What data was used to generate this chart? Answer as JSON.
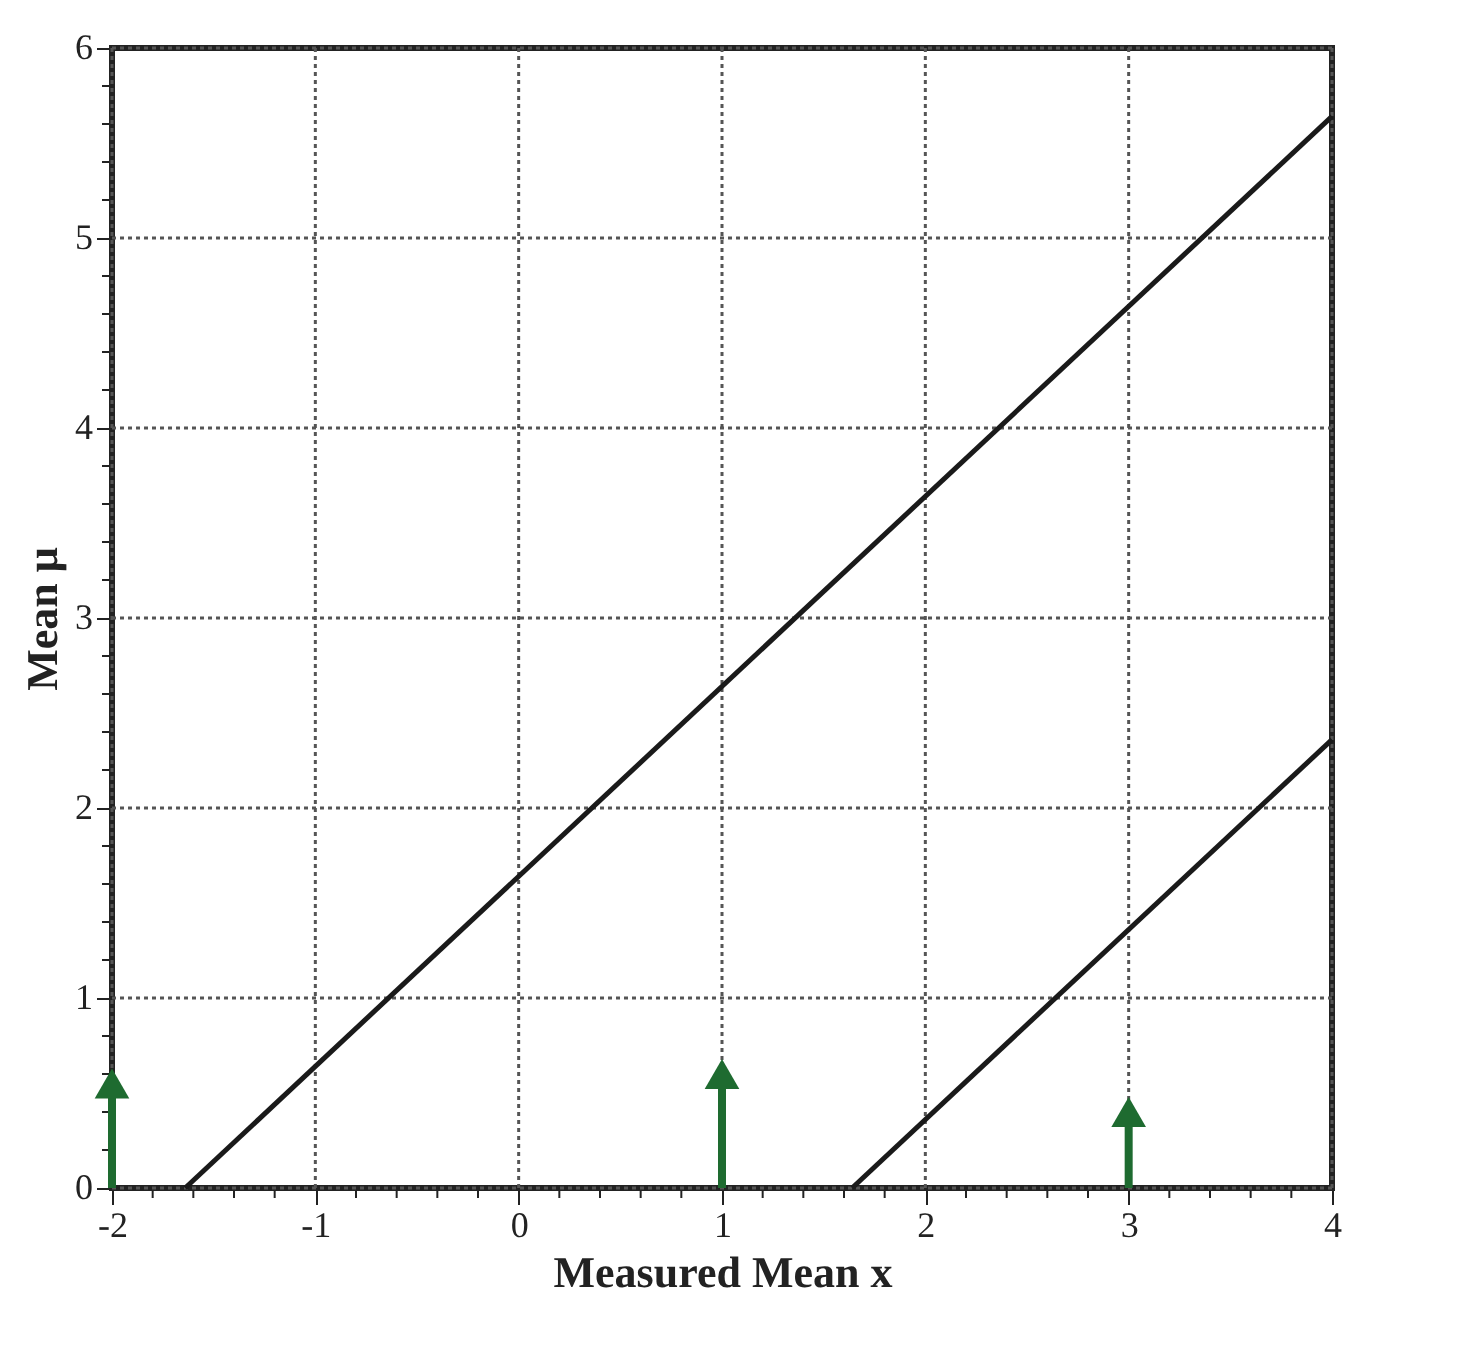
{
  "chart_data": {
    "type": "line",
    "xlabel": "Measured Mean x",
    "ylabel": "Mean μ",
    "xlim": [
      -2,
      4
    ],
    "ylim": [
      0,
      6
    ],
    "xticks": [
      -2,
      {
        "value": -1.8,
        "label": null
      },
      {
        "value": -1.6,
        "label": null
      },
      {
        "value": -1.4,
        "label": null
      },
      {
        "value": -1.2,
        "label": null
      },
      -1,
      {
        "value": -0.8,
        "label": null
      },
      {
        "value": -0.6,
        "label": null
      },
      {
        "value": -0.4,
        "label": null
      },
      {
        "value": -0.2,
        "label": null
      },
      0,
      {
        "value": 0.2,
        "label": null
      },
      {
        "value": 0.4,
        "label": null
      },
      {
        "value": 0.6,
        "label": null
      },
      {
        "value": 0.8,
        "label": null
      },
      1,
      {
        "value": 1.2,
        "label": null
      },
      {
        "value": 1.4,
        "label": null
      },
      {
        "value": 1.6,
        "label": null
      },
      {
        "value": 1.8,
        "label": null
      },
      2,
      {
        "value": 2.2,
        "label": null
      },
      {
        "value": 2.4,
        "label": null
      },
      {
        "value": 2.6,
        "label": null
      },
      {
        "value": 2.8,
        "label": null
      },
      3,
      {
        "value": 3.2,
        "label": null
      },
      {
        "value": 3.4,
        "label": null
      },
      {
        "value": 3.6,
        "label": null
      },
      {
        "value": 3.8,
        "label": null
      },
      4
    ],
    "yticks": [
      0,
      {
        "value": 0.2,
        "label": null
      },
      {
        "value": 0.4,
        "label": null
      },
      {
        "value": 0.6,
        "label": null
      },
      {
        "value": 0.8,
        "label": null
      },
      1,
      {
        "value": 1.2,
        "label": null
      },
      {
        "value": 1.4,
        "label": null
      },
      {
        "value": 1.6,
        "label": null
      },
      {
        "value": 1.8,
        "label": null
      },
      2,
      {
        "value": 2.2,
        "label": null
      },
      {
        "value": 2.4,
        "label": null
      },
      {
        "value": 2.6,
        "label": null
      },
      {
        "value": 2.8,
        "label": null
      },
      3,
      {
        "value": 3.2,
        "label": null
      },
      {
        "value": 3.4,
        "label": null
      },
      {
        "value": 3.6,
        "label": null
      },
      {
        "value": 3.8,
        "label": null
      },
      4,
      {
        "value": 4.2,
        "label": null
      },
      {
        "value": 4.4,
        "label": null
      },
      {
        "value": 4.6,
        "label": null
      },
      {
        "value": 4.8,
        "label": null
      },
      5,
      {
        "value": 5.2,
        "label": null
      },
      {
        "value": 5.4,
        "label": null
      },
      {
        "value": 5.6,
        "label": null
      },
      {
        "value": 5.8,
        "label": null
      },
      6
    ],
    "grid": true,
    "line_style": "solid",
    "series": [
      {
        "color": "#1a1a1a",
        "x": [
          -1.64,
          4
        ],
        "values": [
          0,
          5.64
        ]
      },
      {
        "color": "#1a1a1a",
        "x": [
          1.64,
          4
        ],
        "values": [
          0,
          2.36
        ]
      },
      {
        "type": "lollipop",
        "color": "#1e6b30",
        "marker": "triangle",
        "x": [
          -2,
          1,
          3
        ],
        "values": [
          0.55,
          0.6,
          0.4
        ]
      }
    ]
  }
}
